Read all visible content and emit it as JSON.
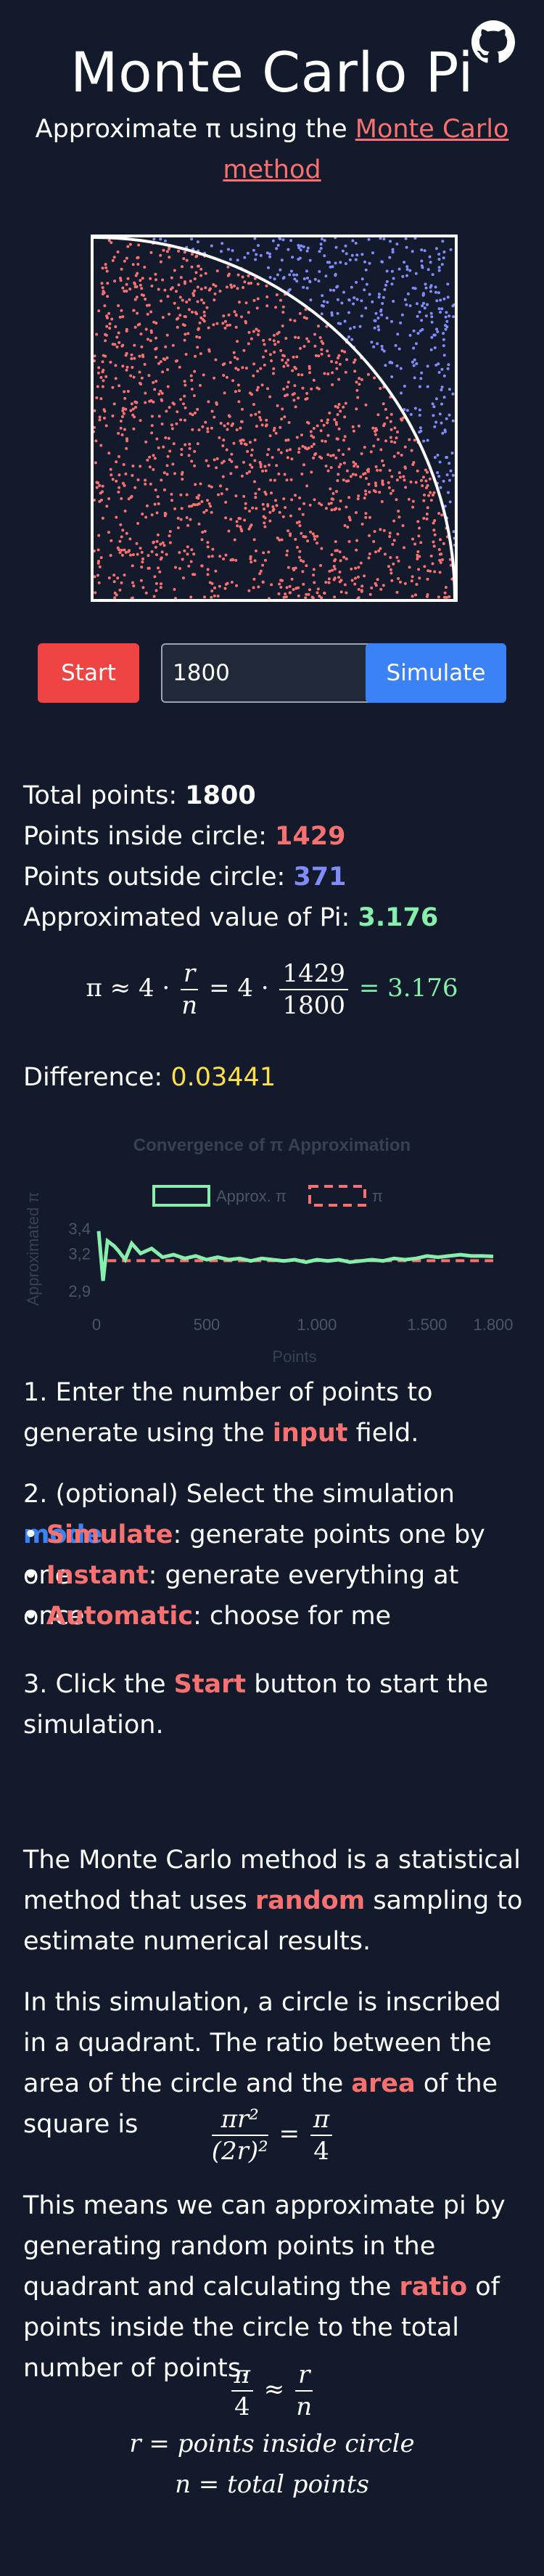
{
  "header": {
    "title": "Monte Carlo Pi",
    "subtitle_prefix": "Approximate π using the ",
    "subtitle_link": "Monte Carlo method"
  },
  "controls": {
    "start_label": "Start",
    "points_value": "1800",
    "mode_label": "Simulate"
  },
  "stats": {
    "total_label": "Total points: ",
    "total_value": "1800",
    "inside_label": "Points inside circle: ",
    "inside_value": "1429",
    "outside_label": "Points outside circle: ",
    "outside_value": "371",
    "pi_label": "Approximated value of Pi: ",
    "pi_value": "3.176",
    "diff_label": "Difference: ",
    "diff_value": "0.03441"
  },
  "formula": {
    "pi_symbol": "π ≈ 4 ·",
    "r": "r",
    "n": "n",
    "eq_four": "= 4 ·",
    "num": "1429",
    "den": "1800",
    "result": "= 3.176"
  },
  "chart_data": {
    "type": "line",
    "title": "Convergence of π Approximation",
    "xlabel": "Points",
    "ylabel": "Approximated π",
    "xlim": [
      0,
      1800
    ],
    "ylim": [
      2.8,
      3.5
    ],
    "x_ticks": [
      "0",
      "500",
      "1.000",
      "1.500",
      "1.800"
    ],
    "y_ticks": [
      "3,4",
      "3,2",
      "2,9"
    ],
    "legend": "top",
    "series": [
      {
        "name": "Approx. π",
        "color": "#86efac",
        "x": [
          10,
          30,
          50,
          80,
          100,
          130,
          160,
          200,
          250,
          300,
          350,
          400,
          450,
          500,
          550,
          600,
          650,
          700,
          750,
          800,
          850,
          900,
          950,
          1000,
          1050,
          1100,
          1150,
          1200,
          1250,
          1300,
          1350,
          1400,
          1450,
          1500,
          1550,
          1600,
          1650,
          1700,
          1750,
          1800
        ],
        "y": [
          3.38,
          2.98,
          3.3,
          3.26,
          3.22,
          3.15,
          3.28,
          3.2,
          3.24,
          3.17,
          3.19,
          3.16,
          3.18,
          3.15,
          3.17,
          3.15,
          3.16,
          3.14,
          3.16,
          3.15,
          3.14,
          3.15,
          3.13,
          3.15,
          3.14,
          3.15,
          3.13,
          3.14,
          3.15,
          3.14,
          3.16,
          3.15,
          3.16,
          3.18,
          3.17,
          3.18,
          3.19,
          3.18,
          3.18,
          3.176
        ]
      },
      {
        "name": "π",
        "color": "#f87171",
        "dashed": true,
        "x": [
          50,
          1800
        ],
        "y": [
          3.14159,
          3.14159
        ]
      }
    ]
  },
  "instructions": {
    "step1_prefix": "1. Enter the number of points to generate using the ",
    "step1_link": "input",
    "step1_suffix": " field.",
    "step2_prefix": "2. (optional) Select the simulation ",
    "step2_link": "mode",
    "step2_suffix": ".",
    "bullet1_name": "Simulate",
    "bullet1_text": ": generate points one by one",
    "bullet2_name": "Instant",
    "bullet2_text": ": generate everything at once",
    "bullet3_name": "Automatic",
    "bullet3_text": ": choose for me",
    "step3_prefix": "3. Click the ",
    "step3_link": "Start",
    "step3_suffix": " button to start the simulation."
  },
  "explanation": {
    "p1_prefix": "The Monte Carlo method is a statistical method that uses ",
    "p1_link": "random",
    "p1_suffix": " sampling to estimate numerical results.",
    "p2_prefix": "In this simulation, a circle is inscribed in a quadrant. The ratio between the area of the circle and the ",
    "p2_link": "area",
    "p2_suffix": " of the square is",
    "p3_prefix": "This means we can approximate pi by generating random points in the quadrant and calculating the ",
    "p3_link": "ratio",
    "p3_suffix": " of points inside the circle to the total number of points.",
    "eq1_num": "πr²",
    "eq1_den": "(2r)²",
    "eq1_rhs_num": "π",
    "eq1_rhs_den": "4",
    "eq2_lhs_num": "π",
    "eq2_lhs_den": "4",
    "eq2_rhs_num": "r",
    "eq2_rhs_den": "n",
    "def_r": "r = points inside circle",
    "def_n": "n = total points"
  }
}
